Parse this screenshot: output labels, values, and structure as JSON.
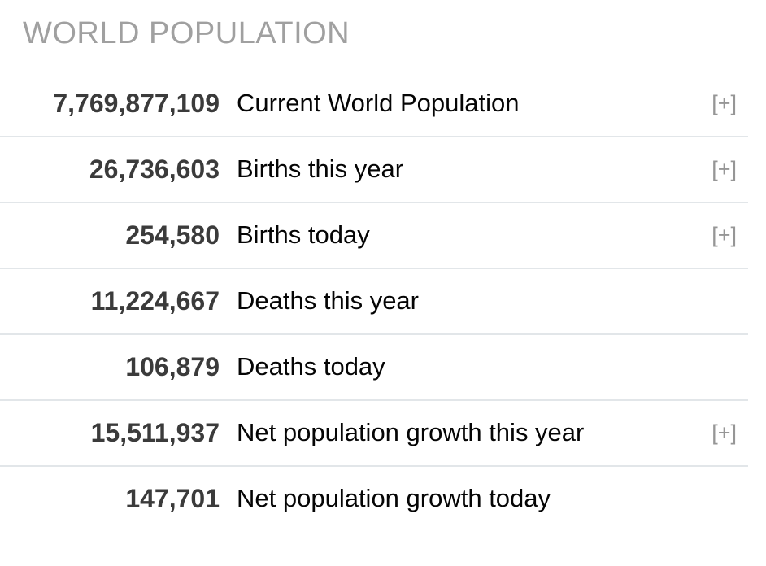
{
  "widget": {
    "title": "WORLD POPULATION",
    "rows": [
      {
        "value": "7,769,877,109",
        "label": "Current World Population",
        "expand": "[+]"
      },
      {
        "value": "26,736,603",
        "label": "Births this year",
        "expand": "[+]"
      },
      {
        "value": "254,580",
        "label": "Births today",
        "expand": "[+]"
      },
      {
        "value": "11,224,667",
        "label": "Deaths this year"
      },
      {
        "value": "106,879",
        "label": "Deaths today"
      },
      {
        "value": "15,511,937",
        "label": "Net population growth this year",
        "expand": "[+]"
      },
      {
        "value": "147,701",
        "label": "Net population growth today"
      }
    ],
    "colors": {
      "background": "#ffffff",
      "title": "#a0a0a0",
      "value": "#3b3b3b",
      "label": "#050505",
      "expand": "#969696",
      "divider": "#e2e6e9"
    }
  }
}
